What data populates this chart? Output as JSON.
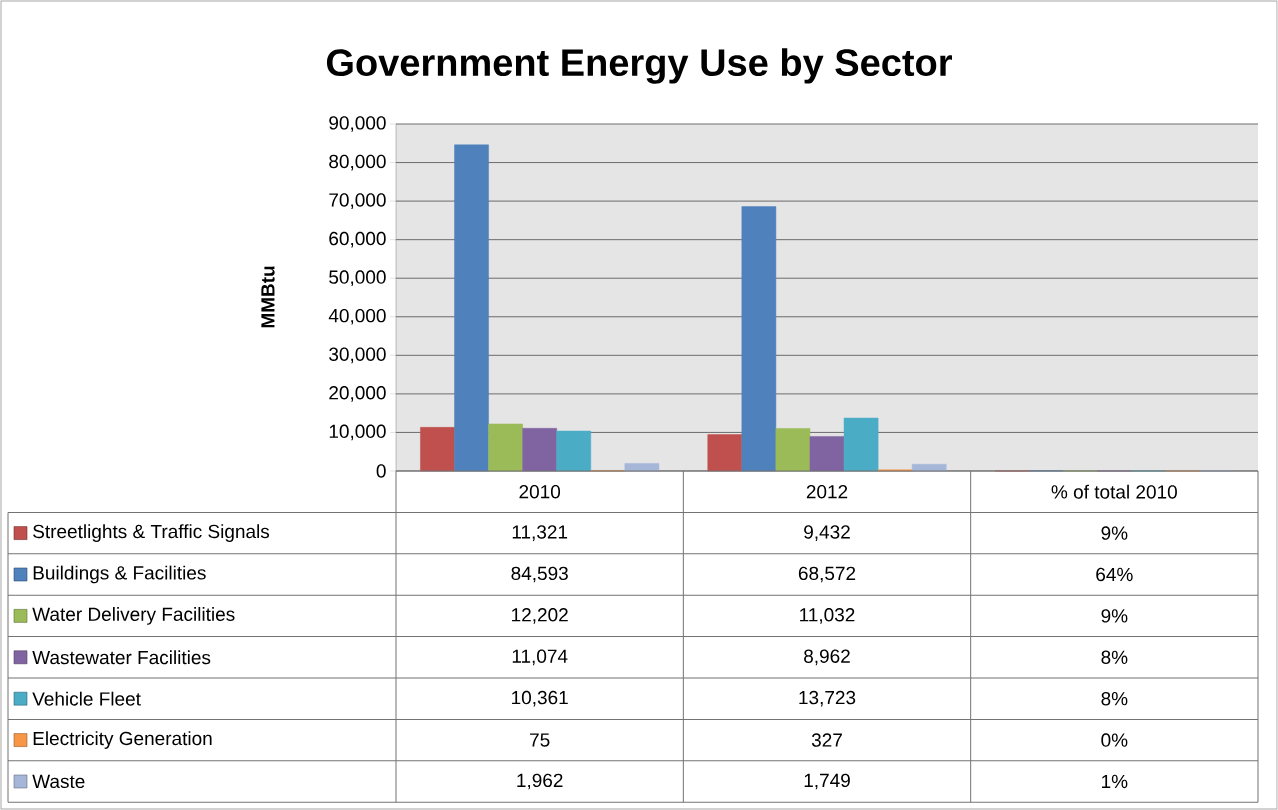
{
  "chart_data": {
    "type": "bar",
    "title": "Government Energy Use by Sector",
    "ylabel": "MMBtu",
    "categories": [
      "2010",
      "2012",
      "% of total 2010"
    ],
    "series": [
      {
        "name": "Streetlights & Traffic Signals",
        "color": "#c0504d",
        "values": [
          11321,
          9432,
          9
        ],
        "value_labels": [
          "11,321",
          "9,432",
          "9%"
        ]
      },
      {
        "name": "Buildings & Facilities",
        "color": "#4f81bd",
        "values": [
          84593,
          68572,
          64
        ],
        "value_labels": [
          "84,593",
          "68,572",
          "64%"
        ]
      },
      {
        "name": "Water Delivery Facilities",
        "color": "#9bbb59",
        "values": [
          12202,
          11032,
          9
        ],
        "value_labels": [
          "12,202",
          "11,032",
          "9%"
        ]
      },
      {
        "name": "Wastewater Facilities",
        "color": "#8064a2",
        "values": [
          11074,
          8962,
          8
        ],
        "value_labels": [
          "11,074",
          "8,962",
          "8%"
        ]
      },
      {
        "name": "Vehicle Fleet",
        "color": "#4bacc6",
        "values": [
          10361,
          13723,
          8
        ],
        "value_labels": [
          "10,361",
          "13,723",
          "8%"
        ]
      },
      {
        "name": "Electricity Generation",
        "color": "#f79646",
        "values": [
          75,
          327,
          0
        ],
        "value_labels": [
          "75",
          "327",
          "0%"
        ]
      },
      {
        "name": "Waste",
        "color": "#a5b6d9",
        "values": [
          1962,
          1749,
          1
        ],
        "value_labels": [
          "1,962",
          "1,749",
          "1%"
        ]
      }
    ],
    "ylim": [
      0,
      90000
    ],
    "yticks": [
      0,
      {
        "value": 10000,
        "label": "10,000"
      },
      {
        "value": 20000,
        "label": "20,000"
      },
      {
        "value": 30000,
        "label": "30,000"
      },
      {
        "value": 40000,
        "label": "40,000"
      },
      {
        "value": 50000,
        "label": "50,000"
      },
      {
        "value": 60000,
        "label": "60,000"
      },
      {
        "value": 70000,
        "label": "70,000"
      },
      {
        "value": 80000,
        "label": "80,000"
      },
      {
        "value": 90000,
        "label": "90,000"
      }
    ],
    "grid": "y",
    "legend": "bottom"
  }
}
